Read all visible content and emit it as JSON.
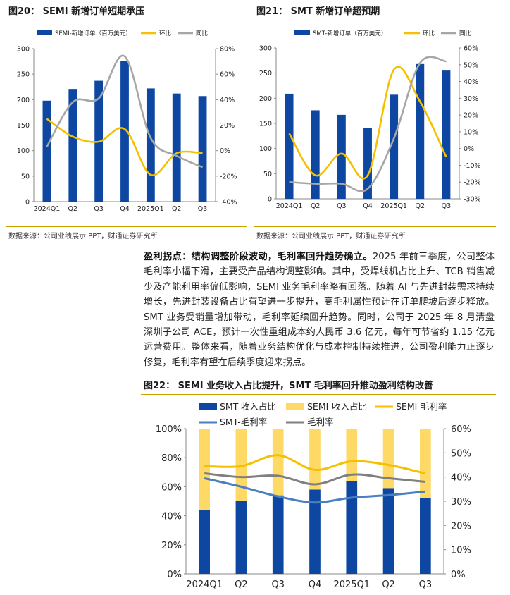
{
  "figure20": {
    "title": "图20：  SEMI 新增订单短期承压",
    "source": "数据来源：公司业绩展示 PPT，财通证券研究所"
  },
  "figure21": {
    "title": "图21：  SMT 新增订单超预期",
    "source": "数据来源：公司业绩展示 PPT，财通证券研究所"
  },
  "figure22": {
    "title": "图22：  SEMI 业务收入占比提升，SMT 毛利率回升推动盈利结构改善"
  },
  "paragraph": {
    "lead": "盈利拐点：结构调整阶段波动，毛利率回升趋势确立。",
    "body": "2025 年前三季度，公司整体毛利率小幅下滑，主要受产品结构调整影响。其中，受焊线机占比上升、TCB 销售减少及产能利用率偏低影响，SEMI 业务毛利率略有回落。随着 AI 与先进封装需求持续增长，先进封装设备占比有望进一步提升，高毛利属性预计在订单爬坡后逐步释放。SMT 业务受销量增加带动，毛利率延续回升趋势。同时，公司于 2025 年 8 月清盘深圳子公司 ACE，预计一次性重组成本约人民币 3.6 亿元，每年可节省约 1.15 亿元运营费用。整体来看，随着业务结构优化与成本控制持续推进，公司盈利能力正逐步修复，毛利率有望在后续季度迎来拐点。"
  },
  "colors": {
    "bar_blue": "#0d47a1",
    "bar_light": "#ffd966",
    "line_yellow": "#f5c000",
    "line_gray": "#a6a6a6",
    "line_lightblue": "#4a7fc1",
    "line_darkgray": "#7f7f7f",
    "rule_gold": "#c9a000"
  },
  "chart_data": [
    {
      "id": "c20",
      "type": "bar",
      "categories": [
        "2024Q1",
        "Q2",
        "Q3",
        "Q4",
        "2025Q1",
        "Q2",
        "Q3"
      ],
      "series": [
        {
          "name": "SEMI-新增订单（百万美元）",
          "kind": "bar",
          "axis": "left",
          "values": [
            198,
            221,
            237,
            276,
            222,
            212,
            207
          ]
        },
        {
          "name": "环比",
          "kind": "line",
          "axis": "right",
          "values": [
            25,
            11,
            7,
            17,
            -19,
            -2,
            -2
          ]
        },
        {
          "name": "同比",
          "kind": "line",
          "axis": "right",
          "values": [
            3,
            38,
            41,
            74,
            10,
            -4,
            -13
          ]
        }
      ],
      "ylim": [
        0,
        300
      ],
      "yticks": [
        0,
        50,
        100,
        150,
        200,
        250,
        300
      ],
      "y2lim": [
        -40,
        80
      ],
      "y2ticks": [
        "-40%",
        "-20%",
        "0%",
        "20%",
        "40%",
        "60%",
        "80%"
      ]
    },
    {
      "id": "c21",
      "type": "bar",
      "categories": [
        "2024Q1",
        "Q2",
        "Q3",
        "Q4",
        "2025Q1",
        "Q2",
        "Q3"
      ],
      "series": [
        {
          "name": "SMT-新增订单（百万美元）",
          "kind": "bar",
          "axis": "left",
          "values": [
            209,
            176,
            167,
            141,
            207,
            268,
            255
          ]
        },
        {
          "name": "环比",
          "kind": "line",
          "axis": "right",
          "values": [
            9,
            -16,
            -3,
            -16,
            47,
            28,
            -5
          ]
        },
        {
          "name": "同比",
          "kind": "line",
          "axis": "right",
          "values": [
            -20,
            -21,
            -21,
            -24,
            6,
            51,
            52
          ]
        }
      ],
      "ylim": [
        0,
        300
      ],
      "yticks": [
        0,
        50,
        100,
        150,
        200,
        250,
        300
      ],
      "y2lim": [
        -30,
        60
      ],
      "y2ticks": [
        "-30%",
        "-20%",
        "-10%",
        "0%",
        "10%",
        "20%",
        "30%",
        "40%",
        "50%",
        "60%"
      ]
    },
    {
      "id": "c22",
      "type": "bar",
      "categories": [
        "2024Q1",
        "Q2",
        "Q3",
        "Q4",
        "2025Q1",
        "Q2",
        "Q3"
      ],
      "series": [
        {
          "name": "SMT-收入占比",
          "kind": "bar",
          "axis": "left",
          "values": [
            44,
            50,
            54,
            58,
            64,
            59,
            52
          ]
        },
        {
          "name": "SEMI-收入占比",
          "kind": "stack",
          "axis": "left",
          "values": [
            56,
            50,
            46,
            42,
            36,
            41,
            48
          ]
        },
        {
          "name": "SEMI-毛利率",
          "kind": "line",
          "axis": "right",
          "values": [
            44.5,
            44.5,
            49,
            43,
            46.5,
            45,
            41.5
          ]
        },
        {
          "name": "SMT-毛利率",
          "kind": "line",
          "axis": "right",
          "values": [
            39.5,
            36,
            32,
            29.5,
            31.5,
            32.5,
            34
          ]
        },
        {
          "name": "毛利率",
          "kind": "line",
          "axis": "right",
          "values": [
            41.5,
            40,
            40.5,
            37,
            41,
            39.5,
            38
          ]
        }
      ],
      "ylim": [
        0,
        100
      ],
      "yticks": [
        "0%",
        "20%",
        "40%",
        "60%",
        "80%",
        "100%"
      ],
      "y2lim": [
        0,
        60
      ],
      "y2ticks": [
        "0%",
        "10%",
        "20%",
        "30%",
        "40%",
        "50%",
        "60%"
      ]
    }
  ]
}
